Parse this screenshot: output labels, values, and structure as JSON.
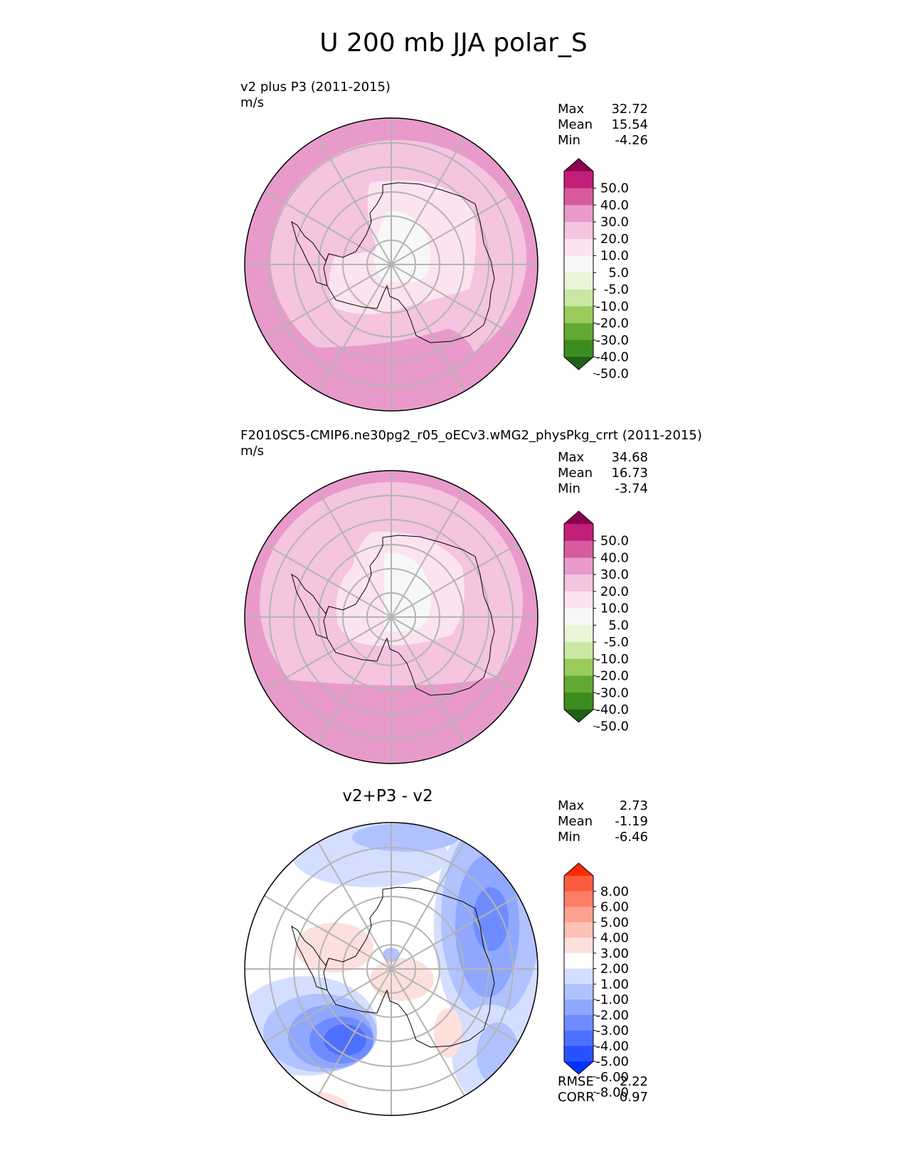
{
  "title": "U 200 mb JJA polar_S",
  "colors": {
    "pink_scale": [
      "#1f6117",
      "#3d8c1f",
      "#62a832",
      "#99cc5c",
      "#c9e8a3",
      "#e8f5d6",
      "#f7f7f7",
      "#fce3f0",
      "#f5c4df",
      "#e89bca",
      "#d65a9e",
      "#c21f78",
      "#8c0051"
    ],
    "diff_scale": [
      "#0033ff",
      "#2952ff",
      "#4d70ff",
      "#6e8cff",
      "#8fa7ff",
      "#b0c2ff",
      "#d4deff",
      "#ffffff",
      "#fde0dc",
      "#fcc2b7",
      "#fca08f",
      "#fb7e67",
      "#fa5c40",
      "#ff2a00"
    ]
  },
  "panels": [
    {
      "title": "v2 plus P3 (2011-2015)",
      "units": "m/s",
      "stats": [
        {
          "label": "Max",
          "value": "32.72"
        },
        {
          "label": "Mean",
          "value": "15.54"
        },
        {
          "label": "Min",
          "value": "-4.26"
        }
      ],
      "colorbar": [
        "50.0",
        "40.0",
        "30.0",
        "20.0",
        "10.0",
        "5.0",
        "-5.0",
        "-10.0",
        "-20.0",
        "-30.0",
        "-40.0",
        "-50.0"
      ]
    },
    {
      "title": "F2010SC5-CMIP6.ne30pg2_r05_oECv3.wMG2_physPkg_crrt (2011-2015)",
      "units": "m/s",
      "stats": [
        {
          "label": "Max",
          "value": "34.68"
        },
        {
          "label": "Mean",
          "value": "16.73"
        },
        {
          "label": "Min",
          "value": "-3.74"
        }
      ],
      "colorbar": [
        "50.0",
        "40.0",
        "30.0",
        "20.0",
        "10.0",
        "5.0",
        "-5.0",
        "-10.0",
        "-20.0",
        "-30.0",
        "-40.0",
        "-50.0"
      ]
    },
    {
      "title": "v2+P3 - v2",
      "stats": [
        {
          "label": "Max",
          "value": "2.73"
        },
        {
          "label": "Mean",
          "value": "-1.19"
        },
        {
          "label": "Min",
          "value": "-6.46"
        }
      ],
      "colorbar": [
        "8.00",
        "6.00",
        "5.00",
        "4.00",
        "3.00",
        "2.00",
        "1.00",
        "-1.00",
        "-2.00",
        "-3.00",
        "-4.00",
        "-5.00",
        "-6.00",
        "-8.00"
      ],
      "extra_stats": [
        {
          "label": "RMSE",
          "value": "2.22"
        },
        {
          "label": "CORR",
          "value": "0.97"
        }
      ]
    }
  ],
  "chart_data": [
    {
      "type": "heatmap",
      "title": "v2 plus P3 (2011-2015)",
      "projection": "south polar stereographic",
      "units": "m/s",
      "levels": [
        -50,
        -40,
        -30,
        -20,
        -10,
        -5,
        5,
        10,
        20,
        30,
        40,
        50
      ],
      "max": 32.72,
      "mean": 15.54,
      "min": -4.26
    },
    {
      "type": "heatmap",
      "title": "F2010SC5-CMIP6.ne30pg2_r05_oECv3.wMG2_physPkg_crrt (2011-2015)",
      "projection": "south polar stereographic",
      "units": "m/s",
      "levels": [
        -50,
        -40,
        -30,
        -20,
        -10,
        -5,
        5,
        10,
        20,
        30,
        40,
        50
      ],
      "max": 34.68,
      "mean": 16.73,
      "min": -3.74
    },
    {
      "type": "heatmap",
      "title": "v2+P3 - v2",
      "projection": "south polar stereographic",
      "levels": [
        -8,
        -6,
        -5,
        -4,
        -3,
        -2,
        -1,
        1,
        2,
        3,
        4,
        5,
        6,
        8
      ],
      "max": 2.73,
      "mean": -1.19,
      "min": -6.46,
      "rmse": 2.22,
      "corr": 0.97
    }
  ]
}
